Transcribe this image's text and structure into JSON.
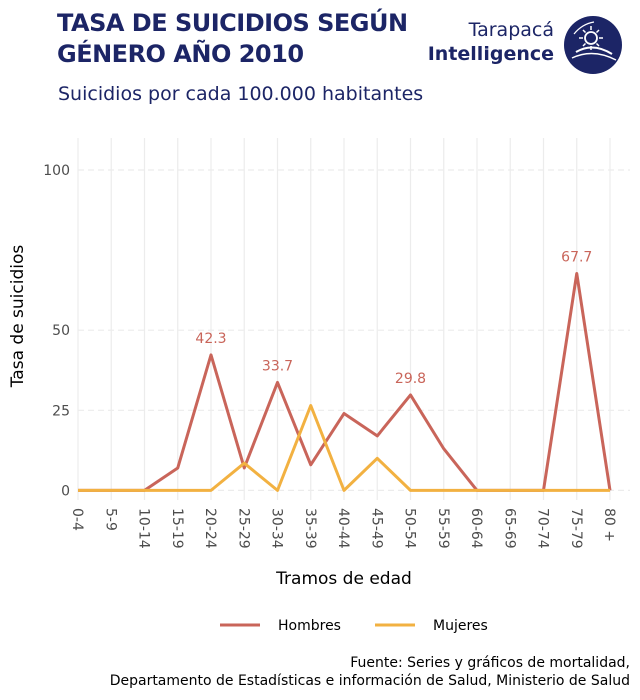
{
  "header": {
    "title": "Tasa de suicidios según género año 2010",
    "subtitle": "Suicidios por cada 100.000 habitantes",
    "brand_top": "Tarapacá",
    "brand_bottom": "Intelligence"
  },
  "caption": {
    "line1": "Fuente: Series y gráficos de mortalidad,",
    "line2": "Departamento de Estadísticas e información de Salud, Ministerio de Salud"
  },
  "colors": {
    "hombres": "#c9655a",
    "mujeres": "#f2b141",
    "brand": "#1c2566",
    "grid": "#ececec"
  },
  "logo_icon": "globe-emblem-icon",
  "chart_data": {
    "type": "line",
    "categories": [
      "0-4",
      "5-9",
      "10-14",
      "15-19",
      "20-24",
      "25-29",
      "30-34",
      "35-39",
      "40-44",
      "45-49",
      "50-54",
      "55-59",
      "60-64",
      "65-69",
      "70-74",
      "75-79",
      "80 +"
    ],
    "series": [
      {
        "name": "Hombres",
        "values": [
          0,
          0,
          0,
          7,
          42.3,
          7,
          33.7,
          8,
          24,
          17,
          29.8,
          13,
          0,
          0,
          0,
          67.7,
          0
        ]
      },
      {
        "name": "Mujeres",
        "values": [
          0,
          0,
          0,
          0,
          0,
          8.5,
          0,
          26.5,
          0,
          10,
          0,
          0,
          0,
          0,
          0,
          0,
          0
        ]
      }
    ],
    "labels": [
      {
        "series": 0,
        "index": 4,
        "text": "42.3"
      },
      {
        "series": 0,
        "index": 6,
        "text": "33.7"
      },
      {
        "series": 0,
        "index": 10,
        "text": "29.8"
      },
      {
        "series": 0,
        "index": 15,
        "text": "67.7"
      }
    ],
    "title": "",
    "xlabel": "Tramos de edad",
    "ylabel": "Tasa de suicidios",
    "yticks": [
      0,
      25,
      50,
      100
    ],
    "ylim": [
      -3,
      110
    ],
    "grid": true,
    "legend": "bottom"
  }
}
